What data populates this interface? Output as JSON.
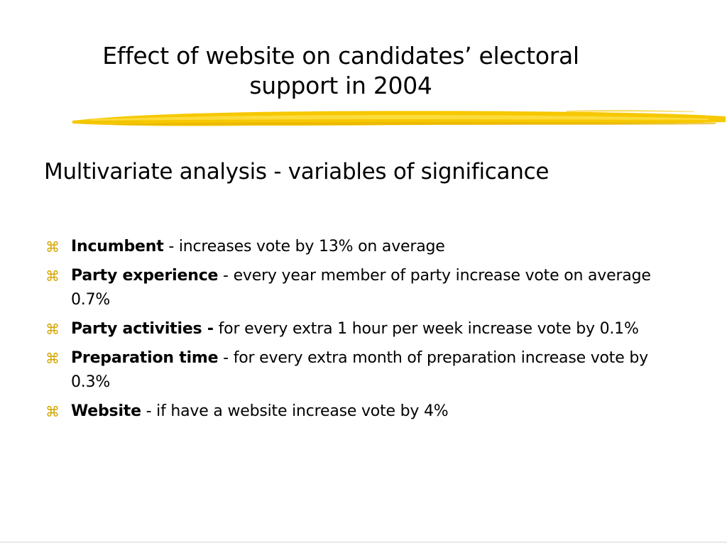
{
  "slide": {
    "title_line1": "Effect of website on candidates’ electoral",
    "title_line2": "support in 2004",
    "subtitle": "Multivariate analysis - variables of significance",
    "accent_color": "#F5C400",
    "bullet_icon": "command-key-icon",
    "bullet_glyph": "⌘",
    "bullets": [
      {
        "bold": "Incumbent",
        "rest": " - increases vote by 13% on average"
      },
      {
        "bold": "Party experience",
        "rest": " - every year member of party increase vote on average 0.7%"
      },
      {
        "bold": "Party activities -",
        "rest": " for every extra 1 hour per week increase vote by 0.1%"
      },
      {
        "bold": "Preparation time",
        "rest": " - for every extra month of preparation increase vote by 0.3%"
      },
      {
        "bold": "Website",
        "rest": " - if have a website increase vote by 4%"
      }
    ]
  }
}
